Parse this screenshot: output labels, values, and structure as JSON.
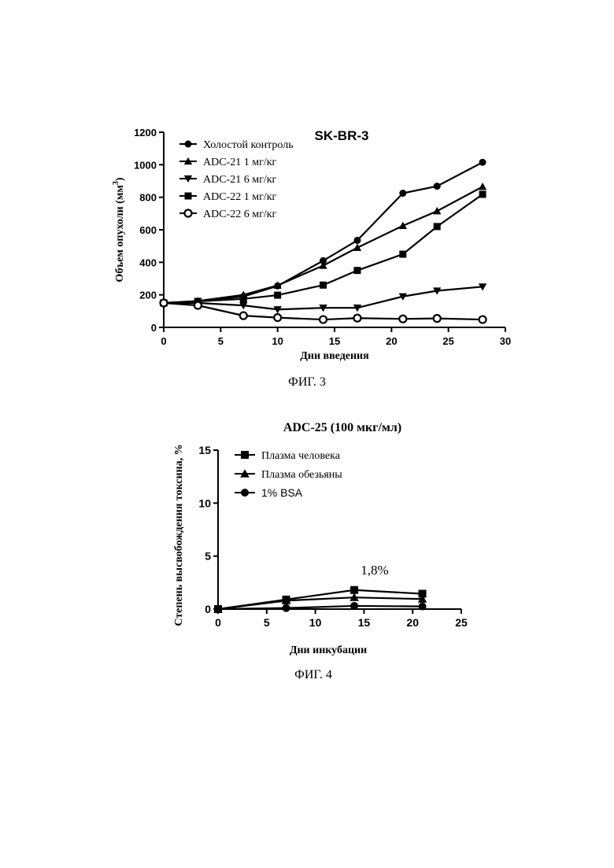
{
  "chart_data": [
    {
      "type": "line",
      "title": "SK-BR-3",
      "xlabel": "Дни введения",
      "ylabel_main": "Объем опухоли (мм",
      "ylabel_sup": "3",
      "ylabel_close": ")",
      "xlim": [
        0,
        30
      ],
      "ylim": [
        0,
        1200
      ],
      "x_ticks": [
        "0",
        "5",
        "10",
        "15",
        "20",
        "25",
        "30"
      ],
      "y_ticks": [
        "0",
        "200",
        "400",
        "600",
        "800",
        "1000",
        "1200"
      ],
      "grid": false,
      "legend_position": "top-left",
      "series": [
        {
          "name": "Холостой контроль",
          "marker": "circle-filled",
          "x": [
            0,
            3,
            7,
            10,
            14,
            17,
            21,
            24,
            28
          ],
          "y": [
            150,
            160,
            190,
            255,
            410,
            535,
            825,
            868,
            1015
          ]
        },
        {
          "name": "ADC-21 1 мг/кг",
          "marker": "triangle-up",
          "x": [
            0,
            3,
            7,
            10,
            14,
            17,
            21,
            24,
            28
          ],
          "y": [
            150,
            162,
            200,
            258,
            380,
            490,
            625,
            715,
            865
          ]
        },
        {
          "name": "ADC-21 6 мг/кг",
          "marker": "triangle-down",
          "x": [
            0,
            3,
            7,
            10,
            14,
            17,
            21,
            24,
            28
          ],
          "y": [
            150,
            150,
            135,
            110,
            120,
            120,
            190,
            225,
            250
          ]
        },
        {
          "name": "ADC-22 1 мг/кг",
          "marker": "square",
          "x": [
            0,
            3,
            7,
            10,
            14,
            17,
            21,
            24,
            28
          ],
          "y": [
            150,
            160,
            175,
            198,
            260,
            350,
            450,
            620,
            818
          ]
        },
        {
          "name": "ADC-22 6 мг/кг",
          "marker": "circle-open",
          "x": [
            0,
            3,
            7,
            10,
            14,
            17,
            21,
            24,
            28
          ],
          "y": [
            150,
            135,
            72,
            60,
            48,
            57,
            52,
            55,
            48
          ]
        }
      ],
      "caption": "ФИГ. 3"
    },
    {
      "type": "line",
      "title": "ADC-25 (100 мкг/мл)",
      "xlabel": "Дни инкубации",
      "ylabel": "Степень высвобождения токсина, %",
      "xlim": [
        0,
        25
      ],
      "ylim": [
        0,
        15
      ],
      "x_ticks": [
        "0",
        "5",
        "10",
        "15",
        "20",
        "25"
      ],
      "y_ticks": [
        "0",
        "5",
        "10",
        "15"
      ],
      "grid": false,
      "legend_position": "top-left",
      "annotation": "1,8%",
      "series": [
        {
          "name": "Плазма человека",
          "marker": "square",
          "x": [
            0,
            7,
            14,
            21
          ],
          "y": [
            0,
            0.9,
            1.8,
            1.45
          ]
        },
        {
          "name": "Плазма обезьяны",
          "marker": "triangle-up",
          "x": [
            0,
            7,
            14,
            21
          ],
          "y": [
            0,
            0.8,
            1.1,
            0.95
          ]
        },
        {
          "name": "1% BSA",
          "marker": "circle-filled",
          "x": [
            0,
            7,
            14,
            21
          ],
          "y": [
            0,
            0.1,
            0.3,
            0.25
          ]
        }
      ],
      "caption": "ФИГ. 4"
    }
  ]
}
